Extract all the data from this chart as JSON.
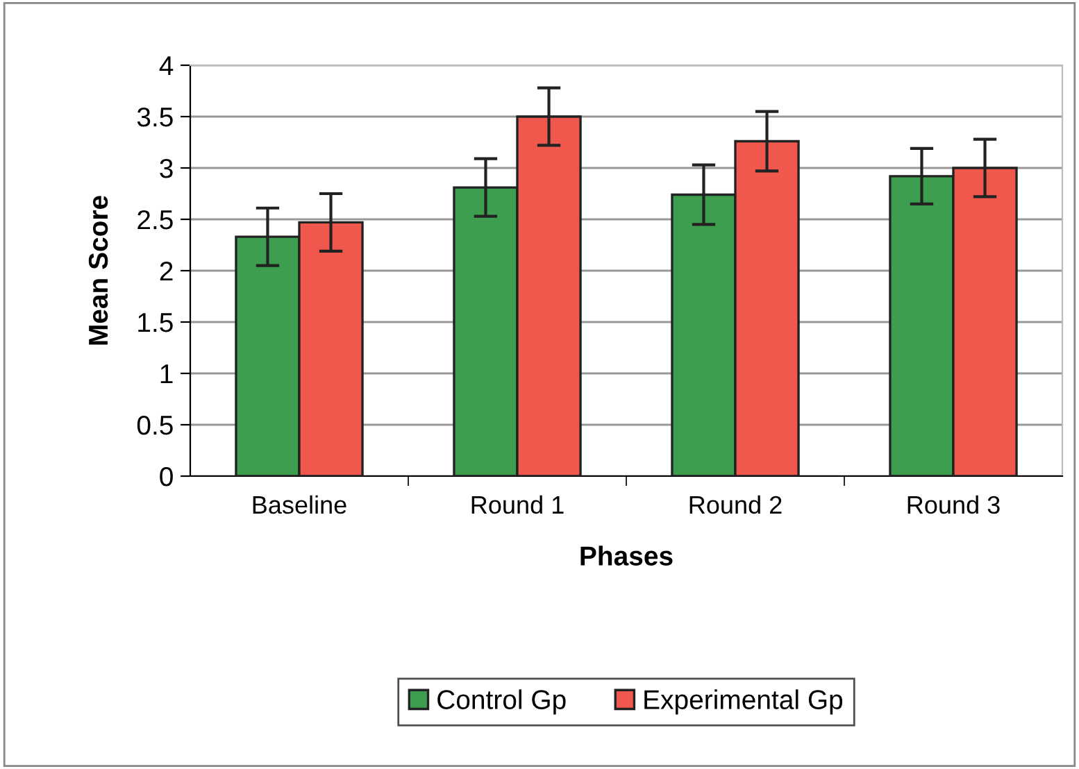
{
  "chart_data": {
    "type": "bar",
    "xlabel": "Phases",
    "ylabel": "Mean Score",
    "categories": [
      "Baseline",
      "Round 1",
      "Round 2",
      "Round 3"
    ],
    "series": [
      {
        "name": "Control Gp",
        "color": "#3d9e4f",
        "values": [
          2.33,
          2.81,
          2.74,
          2.92
        ],
        "errors": [
          0.28,
          0.28,
          0.29,
          0.27
        ]
      },
      {
        "name": "Experimental Gp",
        "color": "#f0584e",
        "values": [
          2.47,
          3.5,
          3.26,
          3.0
        ],
        "errors": [
          0.28,
          0.28,
          0.29,
          0.28
        ]
      }
    ],
    "ylim": [
      0,
      4
    ],
    "yticks": [
      0,
      0.5,
      1,
      1.5,
      2,
      2.5,
      3,
      3.5,
      4
    ],
    "grid": "y",
    "legend": "bottom"
  }
}
